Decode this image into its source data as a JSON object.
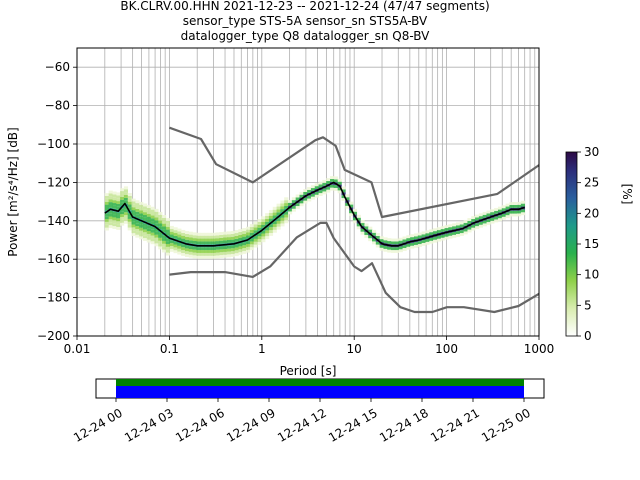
{
  "title_lines": [
    "BK.CLRV.00.HHN   2021-12-23 -- 2021-12-24  (47/47 segments)",
    "sensor_type STS-5A sensor_sn STS5A-BV",
    "datalogger_type Q8 datalogger_sn Q8-BV"
  ],
  "chart_data": [
    {
      "type": "heatmap",
      "xlabel": "Period [s]",
      "ylabel": "Power [m²/s⁴/Hz] [dB]",
      "xscale": "log",
      "xlim": [
        0.01,
        1000
      ],
      "ylim": [
        -200,
        -50
      ],
      "grid": true,
      "xticks": [
        0.01,
        0.1,
        1,
        10,
        100,
        1000
      ],
      "xtick_labels": [
        "0.01",
        "0.1",
        "1",
        "10",
        "100",
        "1000"
      ],
      "yticks": [
        -200,
        -180,
        -160,
        -140,
        -120,
        -100,
        -80,
        -60
      ],
      "ytick_labels": [
        "−200",
        "−180",
        "−160",
        "−140",
        "−120",
        "−100",
        "−80",
        "−60"
      ],
      "colorbar": {
        "label": "[%]",
        "range": [
          0,
          30
        ],
        "ticks": [
          "0",
          "5",
          "10",
          "15",
          "20",
          "25",
          "30"
        ]
      },
      "series": [
        {
          "role": "mode",
          "color": "#000000",
          "x": [
            0.02,
            0.023,
            0.028,
            0.033,
            0.04,
            0.05,
            0.07,
            0.1,
            0.15,
            0.2,
            0.3,
            0.5,
            0.7,
            1,
            1.5,
            2,
            3,
            4,
            5,
            6,
            7,
            8,
            10,
            12,
            15,
            20,
            25,
            30,
            40,
            50,
            70,
            100,
            150,
            200,
            300,
            400,
            500,
            600,
            700
          ],
          "y": [
            -136,
            -134,
            -135,
            -131,
            -138,
            -140,
            -143,
            -149,
            -152,
            -153,
            -153,
            -152,
            -150,
            -145,
            -138,
            -133,
            -127,
            -124,
            -122,
            -120,
            -122,
            -128,
            -137,
            -143,
            -147,
            -152,
            -153,
            -153,
            -151,
            -150,
            -148,
            -146,
            -144,
            -141,
            -138,
            -136,
            -134,
            -134,
            -133
          ]
        },
        {
          "role": "noise-model-high",
          "color": "#666666",
          "x": [
            0.1,
            0.22,
            0.32,
            0.8,
            3.8,
            4.6,
            6.3,
            7.9,
            15.4,
            20,
            354.8,
            1000
          ],
          "y": [
            -91.5,
            -97.4,
            -110.5,
            -120,
            -98,
            -96.5,
            -101,
            -113.5,
            -120,
            -138,
            -126,
            -111
          ]
        },
        {
          "role": "noise-model-low",
          "color": "#666666",
          "x": [
            0.1,
            0.17,
            0.4,
            0.8,
            1.24,
            2.4,
            4.3,
            5,
            6,
            10,
            12,
            15.6,
            21.9,
            31.6,
            45,
            70,
            101,
            154,
            328,
            600,
            1000
          ],
          "y": [
            -168,
            -166.7,
            -166.7,
            -169.2,
            -163.7,
            -148.6,
            -141.1,
            -141.1,
            -149,
            -163.8,
            -166.2,
            -162.1,
            -177.5,
            -185,
            -187.5,
            -187.5,
            -185,
            -185,
            -187.5,
            -184.4,
            -178
          ]
        }
      ]
    },
    {
      "type": "timeline",
      "time_range": [
        "12-24 00",
        "12-25 00"
      ],
      "tick_labels": [
        "12-24 00",
        "12-24 03",
        "12-24 06",
        "12-24 09",
        "12-24 12",
        "12-24 15",
        "12-24 18",
        "12-24 21",
        "12-25 00"
      ],
      "coverage": [
        {
          "start_hour": 0,
          "end_hour": 24
        }
      ],
      "colors": {
        "data": "#0000ff",
        "psd": "#008000"
      }
    }
  ]
}
